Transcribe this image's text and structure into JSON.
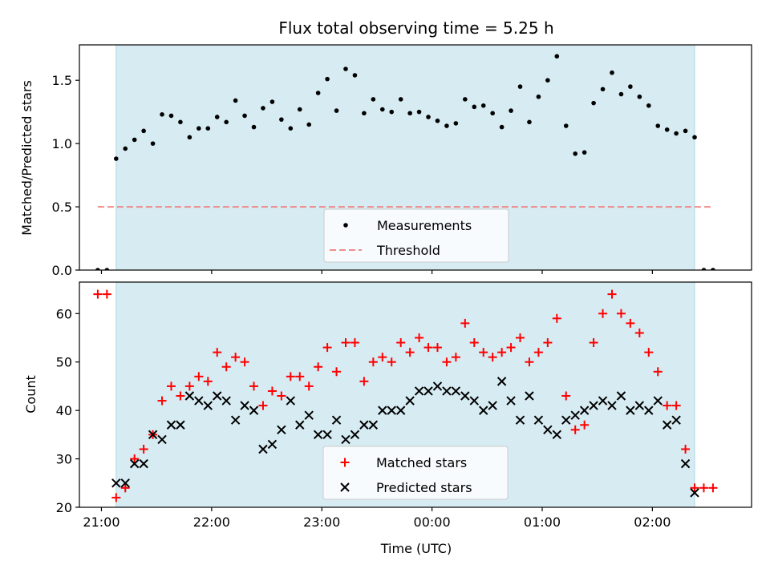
{
  "chart_data": [
    {
      "type": "scatter",
      "title": "Flux total observing time = 5.25 h",
      "xlabel": "",
      "ylabel": "Matched/Predicted stars",
      "xlim": [
        "20:48",
        "02:54"
      ],
      "ylim": [
        0,
        1.78
      ],
      "yticks": [
        "0.0",
        "0.5",
        "1.0",
        "1.5"
      ],
      "observing_window": [
        "21:08",
        "02:23"
      ],
      "legend_position": "lower-center",
      "series": [
        {
          "name": "Measurements",
          "marker": "dot",
          "color": "#000000",
          "x": [
            "20:58",
            "21:03",
            "21:08",
            "21:13",
            "21:18",
            "21:23",
            "21:28",
            "21:33",
            "21:38",
            "21:43",
            "21:48",
            "21:53",
            "21:58",
            "22:03",
            "22:08",
            "22:13",
            "22:18",
            "22:23",
            "22:28",
            "22:33",
            "22:38",
            "22:43",
            "22:48",
            "22:53",
            "22:58",
            "23:03",
            "23:08",
            "23:13",
            "23:18",
            "23:23",
            "23:28",
            "23:33",
            "23:38",
            "23:43",
            "23:48",
            "23:53",
            "23:58",
            "00:03",
            "00:08",
            "00:13",
            "00:18",
            "00:23",
            "00:28",
            "00:33",
            "00:38",
            "00:43",
            "00:48",
            "00:53",
            "00:58",
            "01:03",
            "01:08",
            "01:13",
            "01:18",
            "01:23",
            "01:28",
            "01:33",
            "01:38",
            "01:43",
            "01:48",
            "01:53",
            "01:58",
            "02:03",
            "02:08",
            "02:13",
            "02:18",
            "02:23",
            "02:28",
            "02:33"
          ],
          "y": [
            0.0,
            0.0,
            0.88,
            0.96,
            1.03,
            1.1,
            1.0,
            1.23,
            1.22,
            1.17,
            1.05,
            1.12,
            1.12,
            1.21,
            1.17,
            1.34,
            1.22,
            1.13,
            1.28,
            1.33,
            1.19,
            1.12,
            1.27,
            1.15,
            1.4,
            1.51,
            1.26,
            1.59,
            1.54,
            1.24,
            1.35,
            1.27,
            1.25,
            1.35,
            1.24,
            1.25,
            1.21,
            1.18,
            1.14,
            1.16,
            1.35,
            1.29,
            1.3,
            1.24,
            1.13,
            1.26,
            1.45,
            1.17,
            1.37,
            1.5,
            1.69,
            1.14,
            0.92,
            0.93,
            1.32,
            1.43,
            1.56,
            1.39,
            1.45,
            1.37,
            1.3,
            1.14,
            1.11,
            1.08,
            1.1,
            1.05,
            0.0,
            0.0
          ]
        },
        {
          "name": "Threshold",
          "marker": "dashed-line",
          "color": "#f08080",
          "x": [
            "20:58",
            "02:33"
          ],
          "y": [
            0.5,
            0.5
          ]
        }
      ]
    },
    {
      "type": "scatter",
      "title": "",
      "xlabel": "Time (UTC)",
      "ylabel": "Count",
      "xlim": [
        "20:48",
        "02:54"
      ],
      "ylim": [
        20,
        66.5
      ],
      "xticks": [
        "21:00",
        "22:00",
        "23:00",
        "00:00",
        "01:00",
        "02:00"
      ],
      "yticks": [
        "20",
        "30",
        "40",
        "50",
        "60"
      ],
      "observing_window": [
        "21:08",
        "02:23"
      ],
      "legend_position": "lower-center",
      "series": [
        {
          "name": "Matched stars",
          "marker": "plus",
          "color": "#ff0000",
          "x": [
            "20:58",
            "21:03",
            "21:08",
            "21:13",
            "21:18",
            "21:23",
            "21:28",
            "21:33",
            "21:38",
            "21:43",
            "21:48",
            "21:53",
            "21:58",
            "22:03",
            "22:08",
            "22:13",
            "22:18",
            "22:23",
            "22:28",
            "22:33",
            "22:38",
            "22:43",
            "22:48",
            "22:53",
            "22:58",
            "23:03",
            "23:08",
            "23:13",
            "23:18",
            "23:23",
            "23:28",
            "23:33",
            "23:38",
            "23:43",
            "23:48",
            "23:53",
            "23:58",
            "00:03",
            "00:08",
            "00:13",
            "00:18",
            "00:23",
            "00:28",
            "00:33",
            "00:38",
            "00:43",
            "00:48",
            "00:53",
            "00:58",
            "01:03",
            "01:08",
            "01:13",
            "01:18",
            "01:23",
            "01:28",
            "01:33",
            "01:38",
            "01:43",
            "01:48",
            "01:53",
            "01:58",
            "02:03",
            "02:08",
            "02:13",
            "02:18",
            "02:23",
            "02:28",
            "02:33"
          ],
          "y": [
            64,
            64,
            22,
            24,
            30,
            32,
            35,
            42,
            45,
            43,
            45,
            47,
            46,
            52,
            49,
            51,
            50,
            45,
            41,
            44,
            43,
            47,
            47,
            45,
            49,
            53,
            48,
            54,
            54,
            46,
            50,
            51,
            50,
            54,
            52,
            55,
            53,
            53,
            50,
            51,
            58,
            54,
            52,
            51,
            52,
            53,
            55,
            50,
            52,
            54,
            59,
            43,
            36,
            37,
            54,
            60,
            64,
            60,
            58,
            56,
            52,
            48,
            41,
            41,
            32,
            24,
            24,
            24
          ]
        },
        {
          "name": "Predicted stars",
          "marker": "x",
          "color": "#000000",
          "x": [
            "21:08",
            "21:13",
            "21:18",
            "21:23",
            "21:28",
            "21:33",
            "21:38",
            "21:43",
            "21:48",
            "21:53",
            "21:58",
            "22:03",
            "22:08",
            "22:13",
            "22:18",
            "22:23",
            "22:28",
            "22:33",
            "22:38",
            "22:43",
            "22:48",
            "22:53",
            "22:58",
            "23:03",
            "23:08",
            "23:13",
            "23:18",
            "23:23",
            "23:28",
            "23:33",
            "23:38",
            "23:43",
            "23:48",
            "23:53",
            "23:58",
            "00:03",
            "00:08",
            "00:13",
            "00:18",
            "00:23",
            "00:28",
            "00:33",
            "00:38",
            "00:43",
            "00:48",
            "00:53",
            "00:58",
            "01:03",
            "01:08",
            "01:13",
            "01:18",
            "01:23",
            "01:28",
            "01:33",
            "01:38",
            "01:43",
            "01:48",
            "01:53",
            "01:58",
            "02:03",
            "02:08",
            "02:13",
            "02:18",
            "02:23"
          ],
          "y": [
            25,
            25,
            29,
            29,
            35,
            34,
            37,
            37,
            43,
            42,
            41,
            43,
            42,
            38,
            41,
            40,
            32,
            33,
            36,
            42,
            37,
            39,
            35,
            35,
            38,
            34,
            35,
            37,
            37,
            40,
            40,
            40,
            42,
            44,
            44,
            45,
            44,
            44,
            43,
            42,
            40,
            41,
            46,
            42,
            38,
            43,
            38,
            36,
            35,
            38,
            39,
            40,
            41,
            42,
            41,
            43,
            40,
            41,
            40,
            42,
            37,
            38,
            29,
            23
          ]
        }
      ]
    }
  ]
}
